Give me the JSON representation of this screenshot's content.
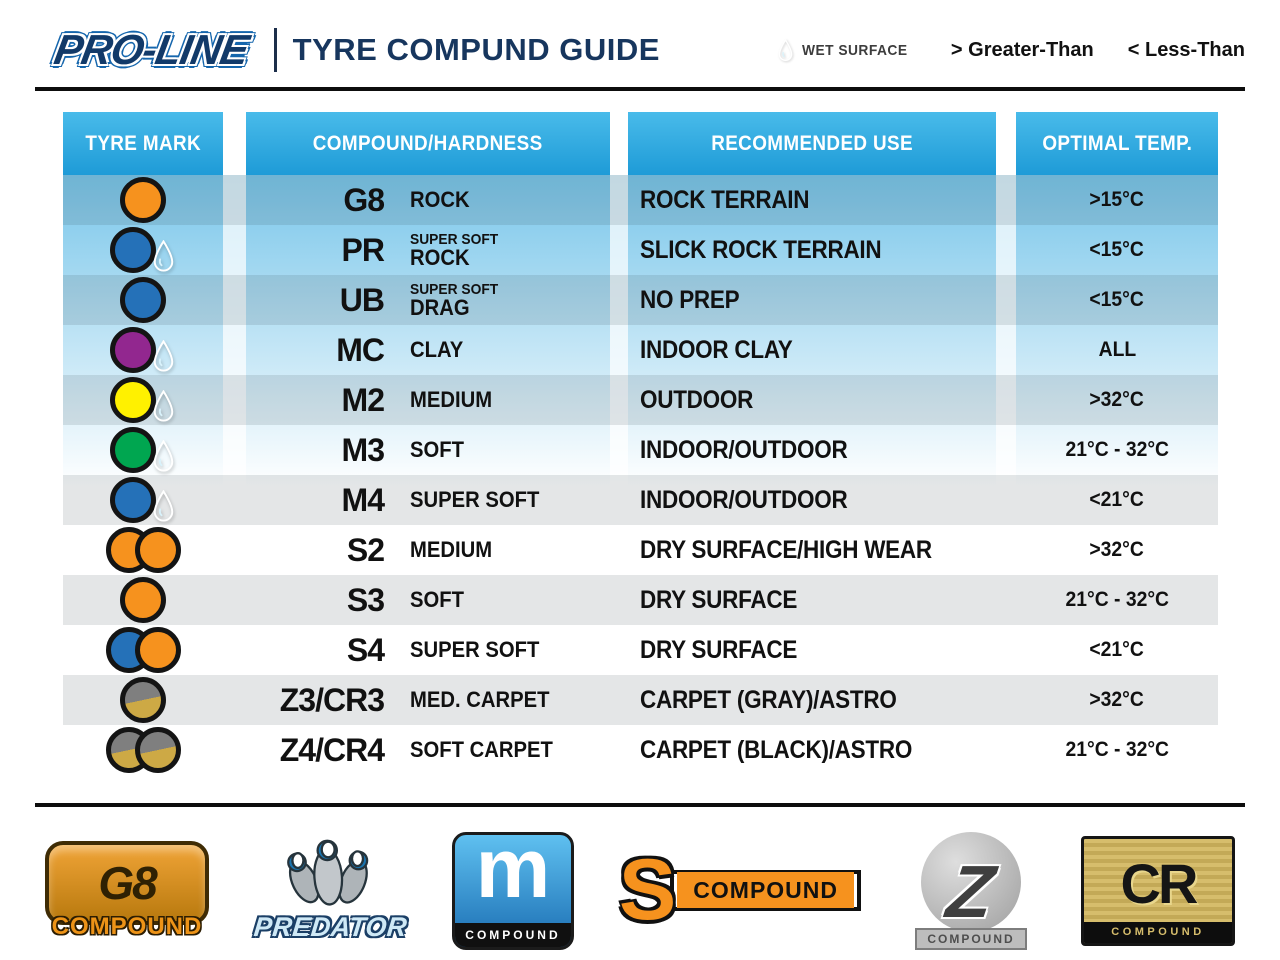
{
  "header": {
    "brand": "PRO-LINE",
    "title": "TYRE COMPUND GUIDE",
    "legend": {
      "wet_surface": "WET SURFACE",
      "greater_than": "> Greater-Than",
      "less_than": "< Less-Than"
    }
  },
  "table": {
    "columns": [
      "TYRE MARK",
      "COMPOUND/HARDNESS",
      "RECOMMENDED USE",
      "OPTIMAL TEMP."
    ],
    "rows": [
      {
        "code": "G8",
        "hardness": "ROCK",
        "use": "ROCK TERRAIN",
        "temp": ">15°C",
        "mark": {
          "circles": [
            "orange"
          ],
          "droplet": false
        }
      },
      {
        "code": "PR",
        "hardness_top": "SUPER SOFT",
        "hardness": "ROCK",
        "use": "SLICK ROCK TERRAIN",
        "temp": "<15°C",
        "mark": {
          "circles": [
            "blue"
          ],
          "droplet": true
        }
      },
      {
        "code": "UB",
        "hardness_top": "SUPER SOFT",
        "hardness": "DRAG",
        "use": "NO PREP",
        "temp": "<15°C",
        "mark": {
          "circles": [
            "blue"
          ],
          "droplet": false
        }
      },
      {
        "code": "MC",
        "hardness": "CLAY",
        "use": "INDOOR CLAY",
        "temp": "ALL",
        "mark": {
          "circles": [
            "purple"
          ],
          "droplet": true
        }
      },
      {
        "code": "M2",
        "hardness": "MEDIUM",
        "use": "OUTDOOR",
        "temp": ">32°C",
        "mark": {
          "circles": [
            "yellow"
          ],
          "droplet": true
        }
      },
      {
        "code": "M3",
        "hardness": "SOFT",
        "use": "INDOOR/OUTDOOR",
        "temp": "21°C - 32°C",
        "mark": {
          "circles": [
            "green"
          ],
          "droplet": true
        }
      },
      {
        "code": "M4",
        "hardness": "SUPER SOFT",
        "use": "INDOOR/OUTDOOR",
        "temp": "<21°C",
        "mark": {
          "circles": [
            "blue"
          ],
          "droplet": true
        }
      },
      {
        "code": "S2",
        "hardness": "MEDIUM",
        "use": "DRY SURFACE/HIGH WEAR",
        "temp": ">32°C",
        "mark": {
          "circles": [
            "orange",
            "orange"
          ],
          "droplet": false
        }
      },
      {
        "code": "S3",
        "hardness": "SOFT",
        "use": "DRY SURFACE",
        "temp": "21°C - 32°C",
        "mark": {
          "circles": [
            "orange"
          ],
          "droplet": false
        }
      },
      {
        "code": "S4",
        "hardness": "SUPER SOFT",
        "use": "DRY SURFACE",
        "temp": "<21°C",
        "mark": {
          "circles": [
            "blue",
            "orange"
          ],
          "droplet": false
        }
      },
      {
        "code": "Z3/CR3",
        "hardness": "MED. CARPET",
        "use": "CARPET (GRAY)/ASTRO",
        "temp": ">32°C",
        "mark": {
          "circles": [
            "carpet"
          ],
          "droplet": false
        }
      },
      {
        "code": "Z4/CR4",
        "hardness": "SOFT CARPET",
        "use": "CARPET (BLACK)/ASTRO",
        "temp": "21°C - 32°C",
        "mark": {
          "circles": [
            "carpet",
            "carpet"
          ],
          "droplet": false
        }
      }
    ]
  },
  "footer": {
    "logos": [
      {
        "id": "g8-compound",
        "main": "G8",
        "sub": "COMPOUND"
      },
      {
        "id": "predator",
        "main": "PREDATOR"
      },
      {
        "id": "m-compound",
        "main": "m",
        "sub": "COMPOUND"
      },
      {
        "id": "s-compound",
        "main": "S",
        "sub": "COMPOUND"
      },
      {
        "id": "z-compound",
        "main": "Z",
        "sub": "COMPOUND"
      },
      {
        "id": "cr-compound",
        "main": "CR",
        "sub": "COMPOUND"
      }
    ]
  },
  "colors": {
    "orange": "#F6921E",
    "blue": "#2571B8",
    "purple": "#92278F",
    "yellow": "#FFF100",
    "green": "#00A650",
    "carpet_gray": "#7F7F7F",
    "carpet_gold": "#CDA945",
    "droplet_light": "#8FD8F2",
    "droplet_dark": "#1B93C8",
    "header_blue_top": "#49BBEA",
    "header_blue_bottom": "#1E9BD7",
    "title_navy": "#17365E"
  }
}
